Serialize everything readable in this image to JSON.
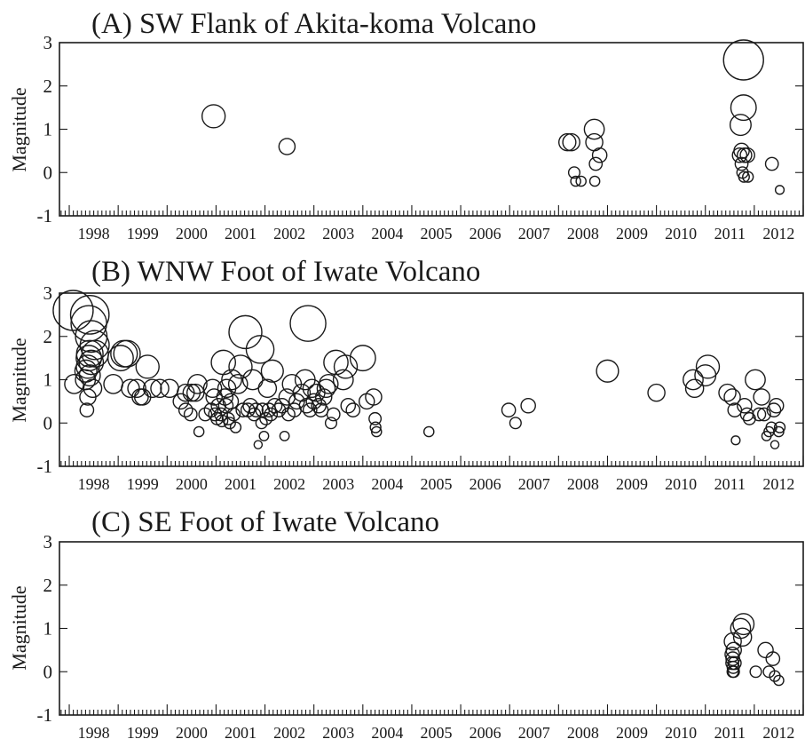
{
  "chart_data": [
    {
      "type": "scatter",
      "title": "(A)  SW Flank of Akita-koma Volcano",
      "ylabel": "Magnitude",
      "xlabel": "",
      "ylim": [
        -1,
        3
      ],
      "yticks": [
        "3",
        "2",
        "1",
        "0",
        "-1"
      ],
      "xlim": [
        1997.8,
        2013.0
      ],
      "xtick_labels": [
        "1998",
        "1999",
        "2000",
        "2001",
        "2002",
        "2003",
        "2004",
        "2005",
        "2006",
        "2007",
        "2008",
        "2009",
        "2010",
        "2011",
        "2012"
      ],
      "grid": false,
      "marker_size_encodes": "magnitude",
      "points": [
        {
          "x": 2000.95,
          "y": 1.3
        },
        {
          "x": 2002.45,
          "y": 0.6
        },
        {
          "x": 2008.18,
          "y": 0.7
        },
        {
          "x": 2008.26,
          "y": 0.7
        },
        {
          "x": 2008.32,
          "y": 0.0
        },
        {
          "x": 2008.35,
          "y": -0.2
        },
        {
          "x": 2008.46,
          "y": -0.2
        },
        {
          "x": 2008.73,
          "y": 1.0
        },
        {
          "x": 2008.73,
          "y": 0.7
        },
        {
          "x": 2008.76,
          "y": 0.2
        },
        {
          "x": 2008.84,
          "y": 0.4
        },
        {
          "x": 2008.74,
          "y": -0.2
        },
        {
          "x": 2011.78,
          "y": 2.6
        },
        {
          "x": 2011.78,
          "y": 1.5
        },
        {
          "x": 2011.72,
          "y": 1.1
        },
        {
          "x": 2011.74,
          "y": 0.5
        },
        {
          "x": 2011.7,
          "y": 0.4
        },
        {
          "x": 2011.8,
          "y": 0.4
        },
        {
          "x": 2011.86,
          "y": 0.4
        },
        {
          "x": 2011.74,
          "y": 0.2
        },
        {
          "x": 2011.76,
          "y": 0.0
        },
        {
          "x": 2011.79,
          "y": -0.1
        },
        {
          "x": 2011.87,
          "y": -0.1
        },
        {
          "x": 2012.36,
          "y": 0.2
        },
        {
          "x": 2012.52,
          "y": -0.4
        }
      ]
    },
    {
      "type": "scatter",
      "title": "(B)  WNW Foot of Iwate Volcano",
      "ylabel": "Magnitude",
      "xlabel": "",
      "ylim": [
        -1,
        3
      ],
      "yticks": [
        "3",
        "2",
        "1",
        "0",
        "-1"
      ],
      "xlim": [
        1997.8,
        2013.0
      ],
      "xtick_labels": [
        "1998",
        "1999",
        "2000",
        "2001",
        "2002",
        "2003",
        "2004",
        "2005",
        "2006",
        "2007",
        "2008",
        "2009",
        "2010",
        "2011",
        "2012"
      ],
      "grid": false,
      "marker_size_encodes": "magnitude",
      "points": [
        {
          "x": 1998.08,
          "y": 2.6
        },
        {
          "x": 1998.1,
          "y": 0.9
        },
        {
          "x": 1998.42,
          "y": 2.5
        },
        {
          "x": 1998.4,
          "y": 2.3
        },
        {
          "x": 1998.45,
          "y": 2.0
        },
        {
          "x": 1998.52,
          "y": 1.8
        },
        {
          "x": 1998.42,
          "y": 1.6
        },
        {
          "x": 1998.4,
          "y": 1.5
        },
        {
          "x": 1998.45,
          "y": 1.4
        },
        {
          "x": 1998.38,
          "y": 1.3
        },
        {
          "x": 1998.34,
          "y": 1.2
        },
        {
          "x": 1998.42,
          "y": 1.1
        },
        {
          "x": 1998.33,
          "y": 1.0
        },
        {
          "x": 1998.48,
          "y": 0.8
        },
        {
          "x": 1998.38,
          "y": 0.6
        },
        {
          "x": 1998.36,
          "y": 0.3
        },
        {
          "x": 1998.53,
          "y": 1.6
        },
        {
          "x": 1998.9,
          "y": 0.9
        },
        {
          "x": 1999.05,
          "y": 1.5
        },
        {
          "x": 1999.12,
          "y": 1.6
        },
        {
          "x": 1999.18,
          "y": 1.6
        },
        {
          "x": 1999.25,
          "y": 0.8
        },
        {
          "x": 1999.38,
          "y": 0.8
        },
        {
          "x": 1999.45,
          "y": 0.6
        },
        {
          "x": 1999.5,
          "y": 0.6
        },
        {
          "x": 1999.6,
          "y": 1.3
        },
        {
          "x": 1999.7,
          "y": 0.8
        },
        {
          "x": 1999.85,
          "y": 0.8
        },
        {
          "x": 2000.05,
          "y": 0.8
        },
        {
          "x": 2000.28,
          "y": 0.5
        },
        {
          "x": 2000.38,
          "y": 0.7
        },
        {
          "x": 2000.5,
          "y": 0.7
        },
        {
          "x": 2000.38,
          "y": 0.3
        },
        {
          "x": 2000.48,
          "y": 0.2
        },
        {
          "x": 2000.58,
          "y": 0.7
        },
        {
          "x": 2000.62,
          "y": 0.9
        },
        {
          "x": 2000.65,
          "y": -0.2
        },
        {
          "x": 2000.78,
          "y": 0.2
        },
        {
          "x": 2000.9,
          "y": 0.3
        },
        {
          "x": 2000.93,
          "y": 0.8
        },
        {
          "x": 2000.96,
          "y": 0.6
        },
        {
          "x": 2000.98,
          "y": 0.2
        },
        {
          "x": 2001.02,
          "y": 0.1
        },
        {
          "x": 2001.05,
          "y": 0.4
        },
        {
          "x": 2001.1,
          "y": 0.2
        },
        {
          "x": 2001.12,
          "y": 0.05
        },
        {
          "x": 2001.15,
          "y": 1.4
        },
        {
          "x": 2001.18,
          "y": 0.6
        },
        {
          "x": 2001.2,
          "y": 0.4
        },
        {
          "x": 2001.22,
          "y": 0.8
        },
        {
          "x": 2001.25,
          "y": 0.1
        },
        {
          "x": 2001.28,
          "y": 0.0
        },
        {
          "x": 2001.3,
          "y": 0.5
        },
        {
          "x": 2001.32,
          "y": 1.0
        },
        {
          "x": 2001.36,
          "y": 0.2
        },
        {
          "x": 2001.4,
          "y": -0.1
        },
        {
          "x": 2001.45,
          "y": 0.9
        },
        {
          "x": 2001.5,
          "y": 1.3
        },
        {
          "x": 2001.55,
          "y": 0.3
        },
        {
          "x": 2001.6,
          "y": 2.1
        },
        {
          "x": 2001.65,
          "y": 0.3
        },
        {
          "x": 2001.7,
          "y": 0.4
        },
        {
          "x": 2001.75,
          "y": 1.0
        },
        {
          "x": 2001.78,
          "y": 0.2
        },
        {
          "x": 2001.82,
          "y": 0.3
        },
        {
          "x": 2001.86,
          "y": -0.5
        },
        {
          "x": 2001.9,
          "y": 1.7
        },
        {
          "x": 2001.93,
          "y": 0.0
        },
        {
          "x": 2001.95,
          "y": 0.3
        },
        {
          "x": 2001.98,
          "y": -0.3
        },
        {
          "x": 2002.02,
          "y": 0.1
        },
        {
          "x": 2002.05,
          "y": 0.8
        },
        {
          "x": 2002.08,
          "y": 0.3
        },
        {
          "x": 2002.12,
          "y": 0.2
        },
        {
          "x": 2002.15,
          "y": 1.2
        },
        {
          "x": 2002.2,
          "y": 0.4
        },
        {
          "x": 2002.28,
          "y": 0.3
        },
        {
          "x": 2002.35,
          "y": 0.4
        },
        {
          "x": 2002.4,
          "y": -0.3
        },
        {
          "x": 2002.45,
          "y": 0.6
        },
        {
          "x": 2002.48,
          "y": 0.2
        },
        {
          "x": 2002.55,
          "y": 0.9
        },
        {
          "x": 2002.6,
          "y": 0.3
        },
        {
          "x": 2002.65,
          "y": 0.5
        },
        {
          "x": 2002.75,
          "y": 0.7
        },
        {
          "x": 2002.82,
          "y": 1.0
        },
        {
          "x": 2002.85,
          "y": 0.4
        },
        {
          "x": 2002.88,
          "y": 2.3
        },
        {
          "x": 2002.92,
          "y": 0.3
        },
        {
          "x": 2002.96,
          "y": 0.8
        },
        {
          "x": 2003.0,
          "y": 0.5
        },
        {
          "x": 2003.05,
          "y": 0.7
        },
        {
          "x": 2003.1,
          "y": 0.4
        },
        {
          "x": 2003.15,
          "y": 0.3
        },
        {
          "x": 2003.2,
          "y": 0.6
        },
        {
          "x": 2003.25,
          "y": 0.8
        },
        {
          "x": 2003.3,
          "y": 0.9
        },
        {
          "x": 2003.35,
          "y": 0.0
        },
        {
          "x": 2003.4,
          "y": 0.2
        },
        {
          "x": 2003.45,
          "y": 1.4
        },
        {
          "x": 2003.6,
          "y": 1.0
        },
        {
          "x": 2003.65,
          "y": 1.3
        },
        {
          "x": 2003.7,
          "y": 0.4
        },
        {
          "x": 2003.8,
          "y": 0.3
        },
        {
          "x": 2004.0,
          "y": 1.5
        },
        {
          "x": 2004.08,
          "y": 0.5
        },
        {
          "x": 2004.22,
          "y": 0.6
        },
        {
          "x": 2004.25,
          "y": 0.1
        },
        {
          "x": 2004.26,
          "y": -0.1
        },
        {
          "x": 2004.28,
          "y": -0.2
        },
        {
          "x": 2005.35,
          "y": -0.2
        },
        {
          "x": 2006.98,
          "y": 0.3
        },
        {
          "x": 2007.12,
          "y": 0.0
        },
        {
          "x": 2007.38,
          "y": 0.4
        },
        {
          "x": 2009.0,
          "y": 1.2
        },
        {
          "x": 2010.0,
          "y": 0.7
        },
        {
          "x": 2010.75,
          "y": 1.0
        },
        {
          "x": 2010.78,
          "y": 0.8
        },
        {
          "x": 2011.0,
          "y": 1.1
        },
        {
          "x": 2011.05,
          "y": 1.3
        },
        {
          "x": 2011.45,
          "y": 0.7
        },
        {
          "x": 2011.55,
          "y": 0.6
        },
        {
          "x": 2011.6,
          "y": 0.3
        },
        {
          "x": 2011.62,
          "y": -0.4
        },
        {
          "x": 2011.8,
          "y": 0.4
        },
        {
          "x": 2011.85,
          "y": 0.2
        },
        {
          "x": 2011.9,
          "y": 0.1
        },
        {
          "x": 2012.02,
          "y": 1.0
        },
        {
          "x": 2012.1,
          "y": 0.2
        },
        {
          "x": 2012.15,
          "y": 0.6
        },
        {
          "x": 2012.2,
          "y": 0.2
        },
        {
          "x": 2012.25,
          "y": -0.3
        },
        {
          "x": 2012.3,
          "y": -0.2
        },
        {
          "x": 2012.35,
          "y": -0.1
        },
        {
          "x": 2012.4,
          "y": 0.3
        },
        {
          "x": 2012.45,
          "y": 0.4
        },
        {
          "x": 2012.5,
          "y": -0.2
        },
        {
          "x": 2012.42,
          "y": -0.5
        },
        {
          "x": 2012.52,
          "y": -0.1
        }
      ]
    },
    {
      "type": "scatter",
      "title": "(C)  SE Foot of Iwate Volcano",
      "ylabel": "Magnitude",
      "xlabel": "",
      "ylim": [
        -1,
        3
      ],
      "yticks": [
        "3",
        "2",
        "1",
        "0",
        "-1"
      ],
      "xlim": [
        1997.8,
        2013.0
      ],
      "xtick_labels": [
        "1998",
        "1999",
        "2000",
        "2001",
        "2002",
        "2003",
        "2004",
        "2005",
        "2006",
        "2007",
        "2008",
        "2009",
        "2010",
        "2011",
        "2012"
      ],
      "grid": false,
      "marker_size_encodes": "magnitude",
      "points": [
        {
          "x": 2011.78,
          "y": 1.1
        },
        {
          "x": 2011.72,
          "y": 1.0
        },
        {
          "x": 2011.76,
          "y": 0.8
        },
        {
          "x": 2011.56,
          "y": 0.7
        },
        {
          "x": 2011.58,
          "y": 0.5
        },
        {
          "x": 2011.55,
          "y": 0.4
        },
        {
          "x": 2011.56,
          "y": 0.3
        },
        {
          "x": 2011.55,
          "y": 0.2
        },
        {
          "x": 2011.57,
          "y": 0.1
        },
        {
          "x": 2011.56,
          "y": 0.0
        },
        {
          "x": 2011.58,
          "y": 0.0
        },
        {
          "x": 2011.6,
          "y": 0.2
        },
        {
          "x": 2012.03,
          "y": 0.0
        },
        {
          "x": 2012.23,
          "y": 0.5
        },
        {
          "x": 2012.3,
          "y": 0.0
        },
        {
          "x": 2012.38,
          "y": 0.3
        },
        {
          "x": 2012.42,
          "y": -0.1
        },
        {
          "x": 2012.5,
          "y": -0.2
        }
      ]
    }
  ]
}
